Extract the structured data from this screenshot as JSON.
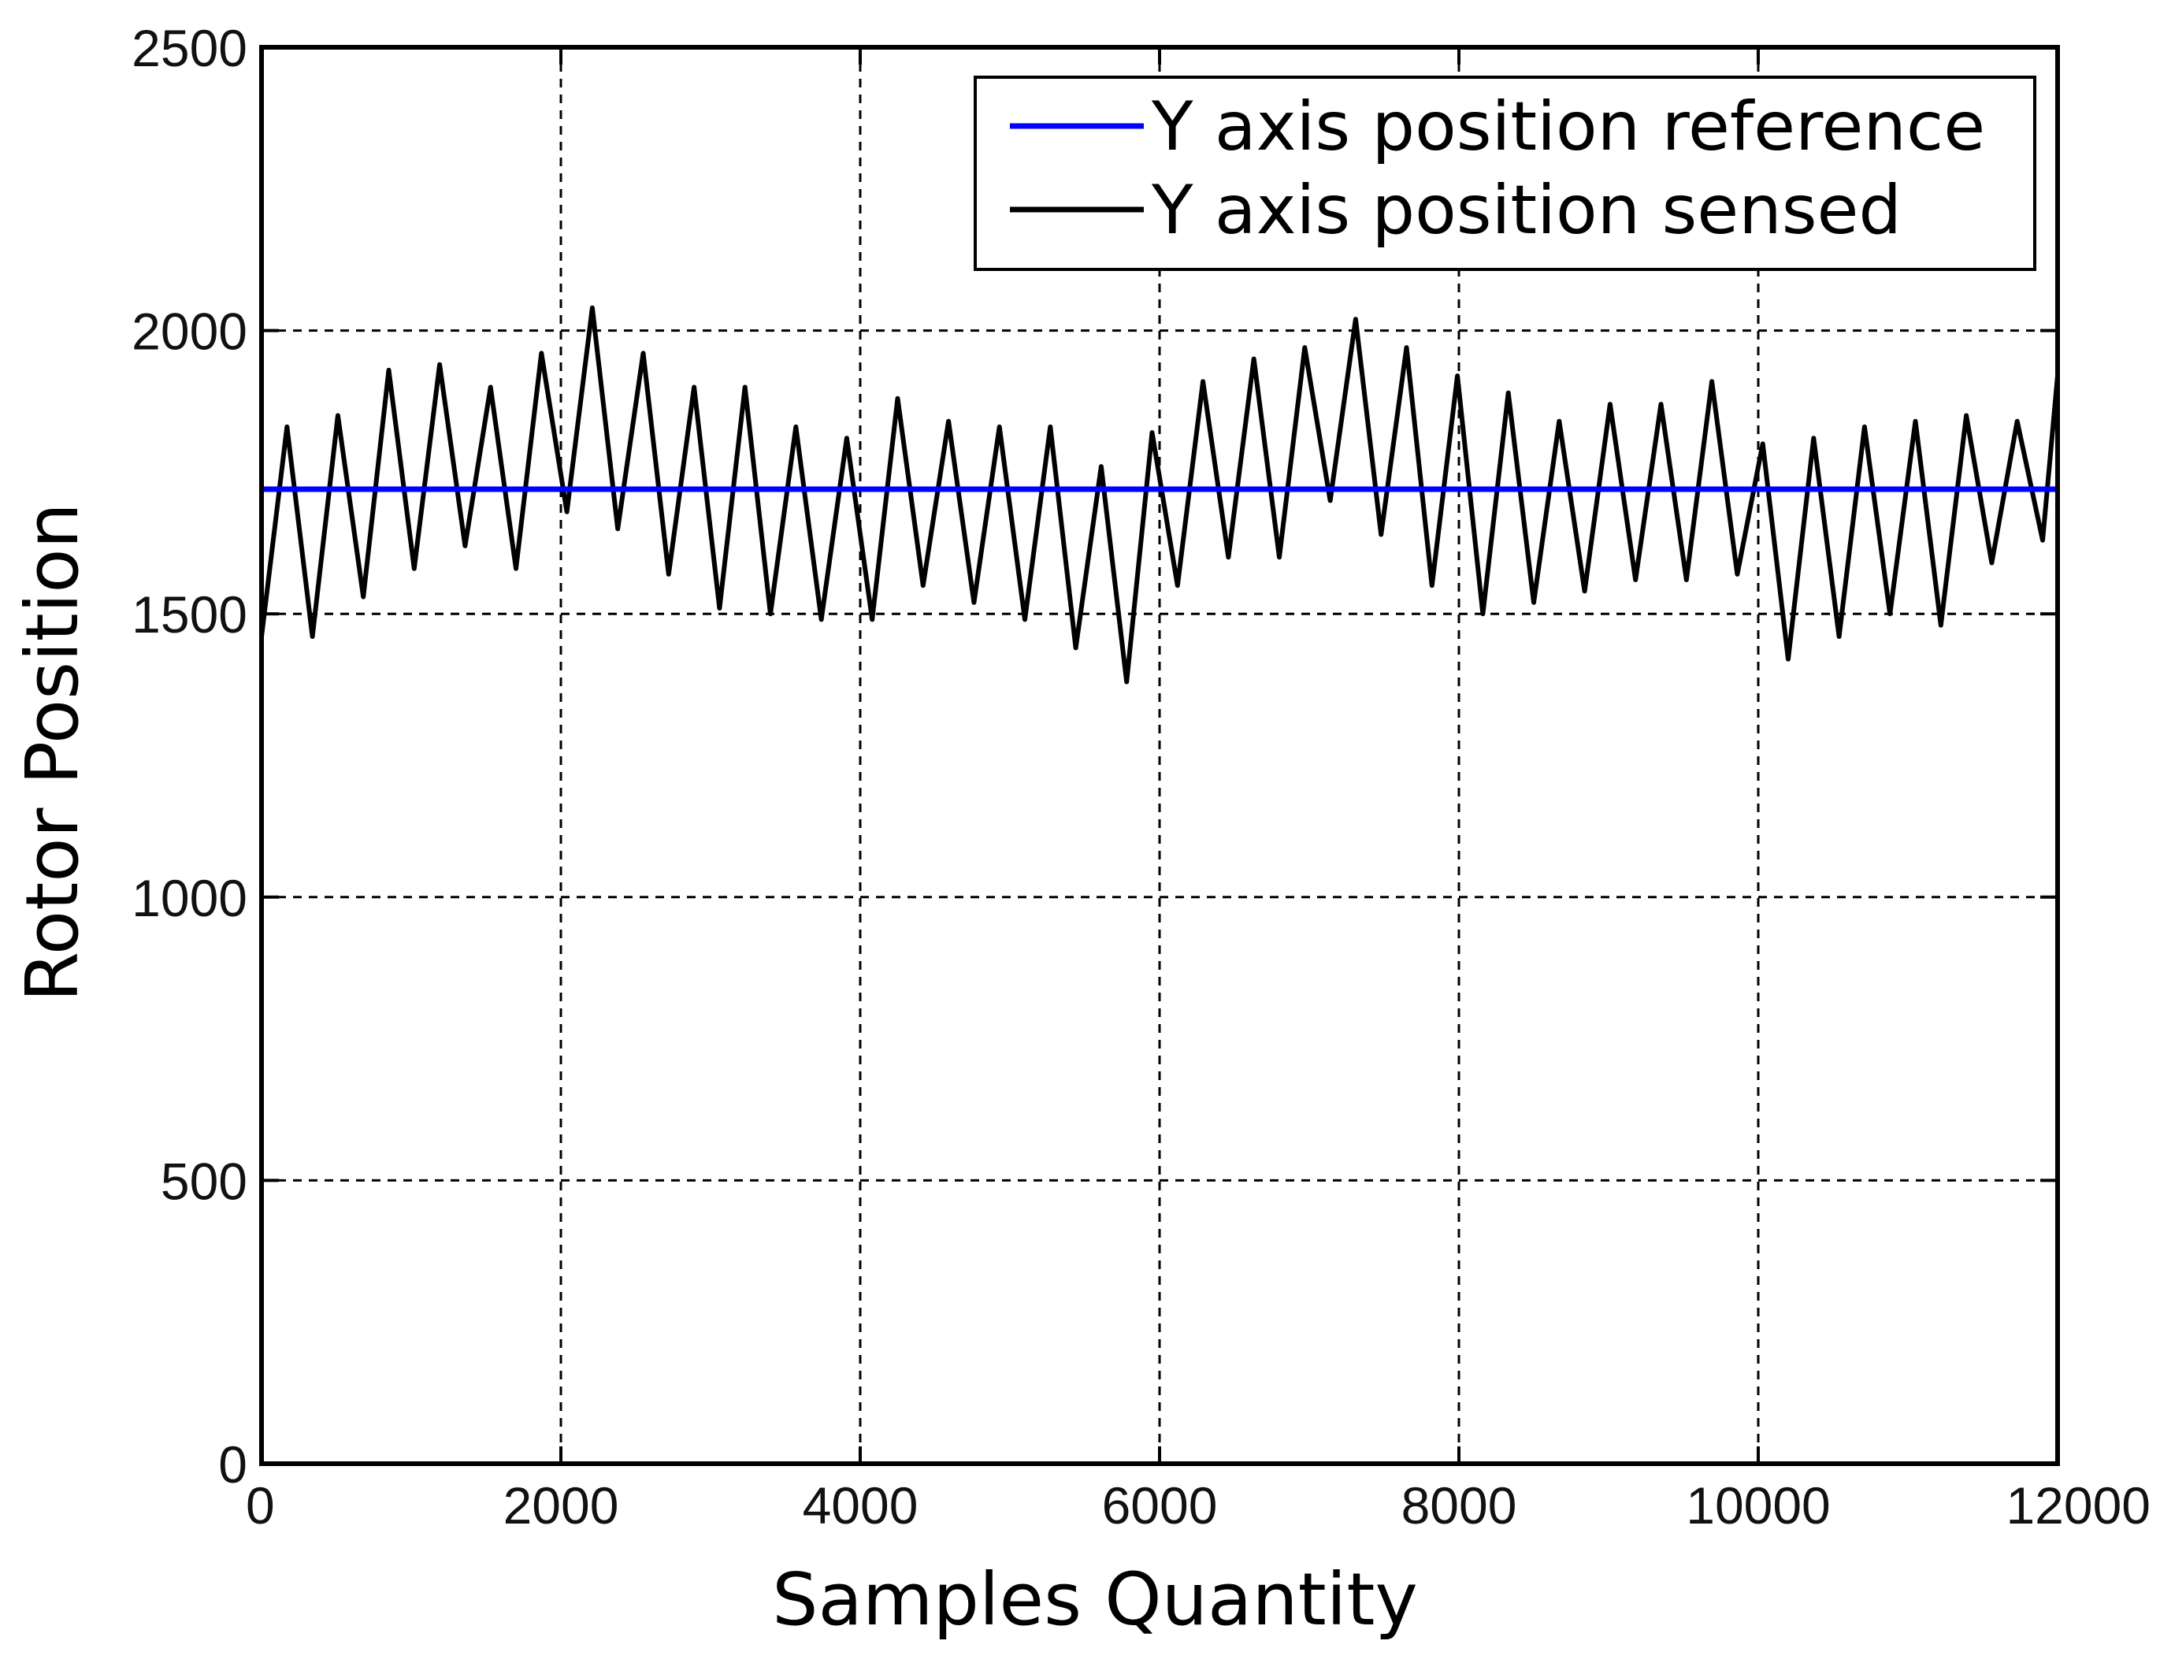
{
  "chart_data": {
    "type": "line",
    "title": "",
    "xlabel": "Samples Quantity",
    "ylabel": "Rotor Position",
    "xlim": [
      0,
      12000
    ],
    "ylim": [
      0,
      2500
    ],
    "xticks": [
      0,
      2000,
      4000,
      6000,
      8000,
      10000,
      12000
    ],
    "yticks": [
      0,
      500,
      1000,
      1500,
      2000,
      2500
    ],
    "grid": true,
    "legend": "top-right",
    "series": [
      {
        "name": "Y axis position reference",
        "color": "#0000ff",
        "x": [
          0,
          12000
        ],
        "y": [
          1720,
          1720
        ]
      },
      {
        "name": "Y axis position sensed",
        "color": "#000000",
        "x": [
          0,
          170,
          340,
          510,
          680,
          850,
          1020,
          1190,
          1360,
          1530,
          1700,
          1870,
          2040,
          2210,
          2380,
          2550,
          2720,
          2890,
          3060,
          3230,
          3400,
          3570,
          3740,
          3910,
          4080,
          4250,
          4420,
          4590,
          4760,
          4930,
          5100,
          5270,
          5440,
          5610,
          5780,
          5950,
          6120,
          6290,
          6460,
          6630,
          6800,
          6970,
          7140,
          7310,
          7480,
          7650,
          7820,
          7990,
          8160,
          8330,
          8500,
          8670,
          8840,
          9010,
          9180,
          9350,
          9520,
          9690,
          9860,
          10030,
          10200,
          10370,
          10540,
          10710,
          10880,
          11050,
          11220,
          11390,
          11560,
          11730,
          11900,
          12000
        ],
        "y": [
          1460,
          1830,
          1460,
          1850,
          1530,
          1930,
          1580,
          1940,
          1620,
          1900,
          1580,
          1960,
          1680,
          2040,
          1650,
          1960,
          1570,
          1900,
          1510,
          1900,
          1500,
          1830,
          1490,
          1810,
          1490,
          1880,
          1550,
          1840,
          1520,
          1830,
          1490,
          1830,
          1440,
          1760,
          1380,
          1820,
          1550,
          1910,
          1600,
          1950,
          1600,
          1970,
          1700,
          2020,
          1640,
          1970,
          1550,
          1920,
          1500,
          1890,
          1520,
          1840,
          1540,
          1870,
          1560,
          1870,
          1560,
          1910,
          1570,
          1800,
          1420,
          1810,
          1460,
          1830,
          1500,
          1840,
          1480,
          1850,
          1590,
          1840,
          1630,
          1920
        ]
      }
    ]
  }
}
